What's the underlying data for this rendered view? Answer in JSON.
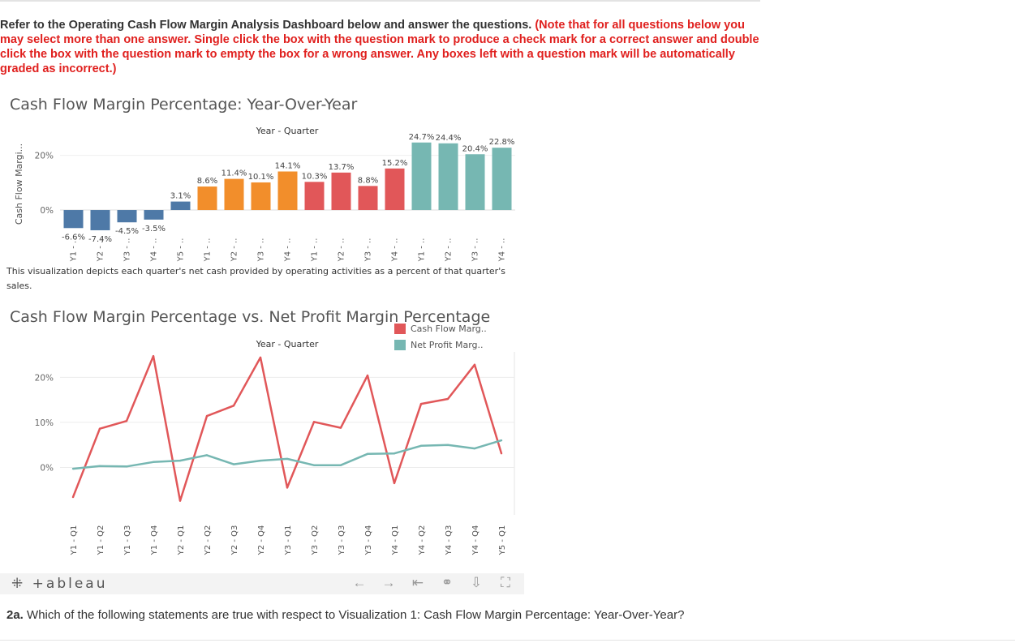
{
  "instructions": {
    "main": "Refer to the Operating Cash Flow Margin Analysis Dashboard below and answer the questions.",
    "note": "(Note that for all questions below you may select more than one answer. Single click the box with the question mark to produce a check mark for a correct answer and double click the box with the question mark to empty the box for a wrong answer. Any boxes left with a question mark will be automatically graded as incorrect.)"
  },
  "viz1": {
    "title": "Cash Flow Margin Percentage: Year-Over-Year",
    "caption": "This visualization depicts each quarter's net cash provided by operating activities as a percent of that quarter's sales."
  },
  "viz2": {
    "title": "Cash Flow Margin Percentage vs. Net Profit Margin Percentage"
  },
  "footer": {
    "logo": "+ableau",
    "icons": [
      "undo-icon",
      "redo-icon",
      "revert-icon",
      "share-icon",
      "download-icon",
      "fullscreen-icon"
    ],
    "icon_glyphs": [
      "←",
      "→",
      "⇤",
      "⚭",
      "⇩",
      "⛶"
    ]
  },
  "question": {
    "number": "2a.",
    "text": "Which of the following statements are true with respect to Visualization 1: Cash Flow Margin Percentage: Year-Over-Year?"
  },
  "chart_data": [
    {
      "type": "bar",
      "title": "Cash Flow Margin Percentage: Year-Over-Year",
      "header": "Year - Quarter",
      "ylabel": "Cash Flow Margi...",
      "yticks": [
        "0%",
        "20%"
      ],
      "ylim": [
        -8,
        27
      ],
      "categories": [
        "Y1 - ..",
        "Y2 - ..",
        "Y3 - ..",
        "Y4 - ..",
        "Y5 - ..",
        "Y1 - ..",
        "Y2 - ..",
        "Y3 - ..",
        "Y4 - ..",
        "Y1 - ..",
        "Y2 - ..",
        "Y3 - ..",
        "Y4 - ..",
        "Y1 - ..",
        "Y2 - ..",
        "Y3 - ..",
        "Y4 - .."
      ],
      "values": [
        -6.6,
        -7.4,
        -4.5,
        -3.5,
        3.1,
        8.6,
        11.4,
        10.1,
        14.1,
        10.3,
        13.7,
        8.8,
        15.2,
        24.7,
        24.4,
        20.4,
        22.8
      ],
      "labels": [
        "-6.6%",
        "-7.4%",
        "-4.5%",
        "-3.5%",
        "3.1%",
        "8.6%",
        "11.4%",
        "10.1%",
        "14.1%",
        "10.3%",
        "13.7%",
        "8.8%",
        "15.2%",
        "24.7%",
        "24.4%",
        "20.4%",
        "22.8%"
      ],
      "colors": [
        "#4e79a7",
        "#4e79a7",
        "#4e79a7",
        "#4e79a7",
        "#4e79a7",
        "#f28e2b",
        "#f28e2b",
        "#f28e2b",
        "#f28e2b",
        "#e15759",
        "#e15759",
        "#e15759",
        "#e15759",
        "#76b7b2",
        "#76b7b2",
        "#76b7b2",
        "#76b7b2"
      ]
    },
    {
      "type": "line",
      "title": "Cash Flow Margin Percentage vs. Net Profit Margin Percentage",
      "header": "Year - Quarter",
      "yticks": [
        "0%",
        "10%",
        "20%"
      ],
      "ylim": [
        -10,
        26
      ],
      "x": [
        "Y1 - Q1",
        "Y1 - Q2",
        "Y1 - Q3",
        "Y1 - Q4",
        "Y2 - Q1",
        "Y2 - Q2",
        "Y2 - Q3",
        "Y2 - Q4",
        "Y3 - Q1",
        "Y3 - Q2",
        "Y3 - Q3",
        "Y3 - Q4",
        "Y4 - Q1",
        "Y4 - Q2",
        "Y4 - Q3",
        "Y4 - Q4",
        "Y5 - Q1"
      ],
      "legend_position": "top-right",
      "series": [
        {
          "name": "Cash Flow Marg..",
          "color": "#e15759",
          "values": [
            -6.6,
            8.6,
            10.3,
            24.7,
            -7.4,
            11.4,
            13.7,
            24.4,
            -4.5,
            10.1,
            8.8,
            20.4,
            -3.5,
            14.1,
            15.2,
            22.8,
            3.1
          ]
        },
        {
          "name": "Net Profit Marg..",
          "color": "#76b7b2",
          "values": [
            -0.3,
            0.3,
            0.2,
            1.2,
            1.5,
            2.7,
            0.7,
            1.5,
            1.9,
            0.5,
            0.5,
            3.0,
            3.1,
            4.8,
            5.0,
            4.2,
            6.0
          ]
        }
      ]
    }
  ]
}
